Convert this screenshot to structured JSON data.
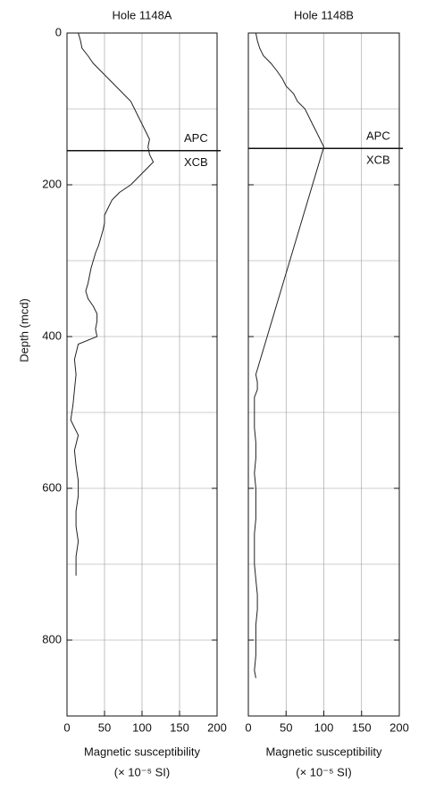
{
  "chart_data": [
    {
      "type": "line",
      "title": "Hole 1148A",
      "y_label": "Depth (mcd)",
      "x_label": "Magnetic susceptibility",
      "x_unit": "(× 10⁻⁵ SI)",
      "xlim": [
        0,
        200
      ],
      "xticks": [
        0,
        50,
        100,
        150,
        200
      ],
      "ylim": [
        0,
        900
      ],
      "yticks": [
        0,
        200,
        400,
        600,
        800
      ],
      "ygrid": [
        100,
        200,
        300,
        400,
        500,
        600,
        700,
        800
      ],
      "grid": true,
      "color": "#222222",
      "annotations": [
        "APC",
        "XCB"
      ],
      "boundary_depth": 155,
      "depth": [
        0,
        10,
        20,
        30,
        40,
        50,
        60,
        70,
        80,
        90,
        100,
        110,
        120,
        130,
        140,
        150,
        160,
        170,
        180,
        190,
        200,
        210,
        220,
        230,
        240,
        250,
        260,
        270,
        280,
        290,
        300,
        310,
        320,
        330,
        340,
        350,
        360,
        370,
        380,
        390,
        400,
        410,
        430,
        450,
        470,
        490,
        510,
        530,
        550,
        570,
        590,
        610,
        630,
        650,
        670,
        690,
        710,
        715
      ],
      "values": [
        15,
        18,
        20,
        28,
        35,
        45,
        55,
        65,
        75,
        85,
        90,
        95,
        100,
        105,
        110,
        108,
        110,
        115,
        105,
        95,
        85,
        70,
        60,
        55,
        50,
        50,
        48,
        45,
        42,
        38,
        35,
        32,
        30,
        28,
        25,
        28,
        35,
        40,
        40,
        38,
        40,
        15,
        10,
        12,
        10,
        8,
        5,
        15,
        10,
        12,
        15,
        15,
        12,
        12,
        15,
        12,
        12,
        12
      ]
    },
    {
      "type": "line",
      "title": "Hole 1148B",
      "x_label": "Magnetic susceptibility",
      "x_unit": "(× 10⁻⁵ SI)",
      "xlim": [
        0,
        200
      ],
      "xticks": [
        0,
        50,
        100,
        150,
        200
      ],
      "ylim": [
        0,
        900
      ],
      "yticks": [
        0,
        200,
        400,
        600,
        800
      ],
      "ygrid": [
        100,
        200,
        300,
        400,
        500,
        600,
        700,
        800
      ],
      "grid": true,
      "color": "#222222",
      "annotations": [
        "APC",
        "XCB"
      ],
      "boundary_depth": 152,
      "depth": [
        0,
        10,
        20,
        30,
        40,
        50,
        60,
        70,
        80,
        90,
        100,
        110,
        120,
        130,
        140,
        150,
        450,
        460,
        470,
        480,
        490,
        500,
        520,
        540,
        560,
        580,
        600,
        620,
        640,
        660,
        680,
        700,
        720,
        740,
        760,
        780,
        800,
        820,
        840,
        850
      ],
      "values": [
        10,
        12,
        15,
        20,
        30,
        38,
        45,
        50,
        60,
        65,
        75,
        80,
        85,
        90,
        95,
        100,
        10,
        12,
        12,
        8,
        8,
        8,
        8,
        10,
        10,
        8,
        10,
        10,
        10,
        8,
        8,
        8,
        10,
        12,
        12,
        10,
        10,
        10,
        8,
        10
      ]
    }
  ]
}
